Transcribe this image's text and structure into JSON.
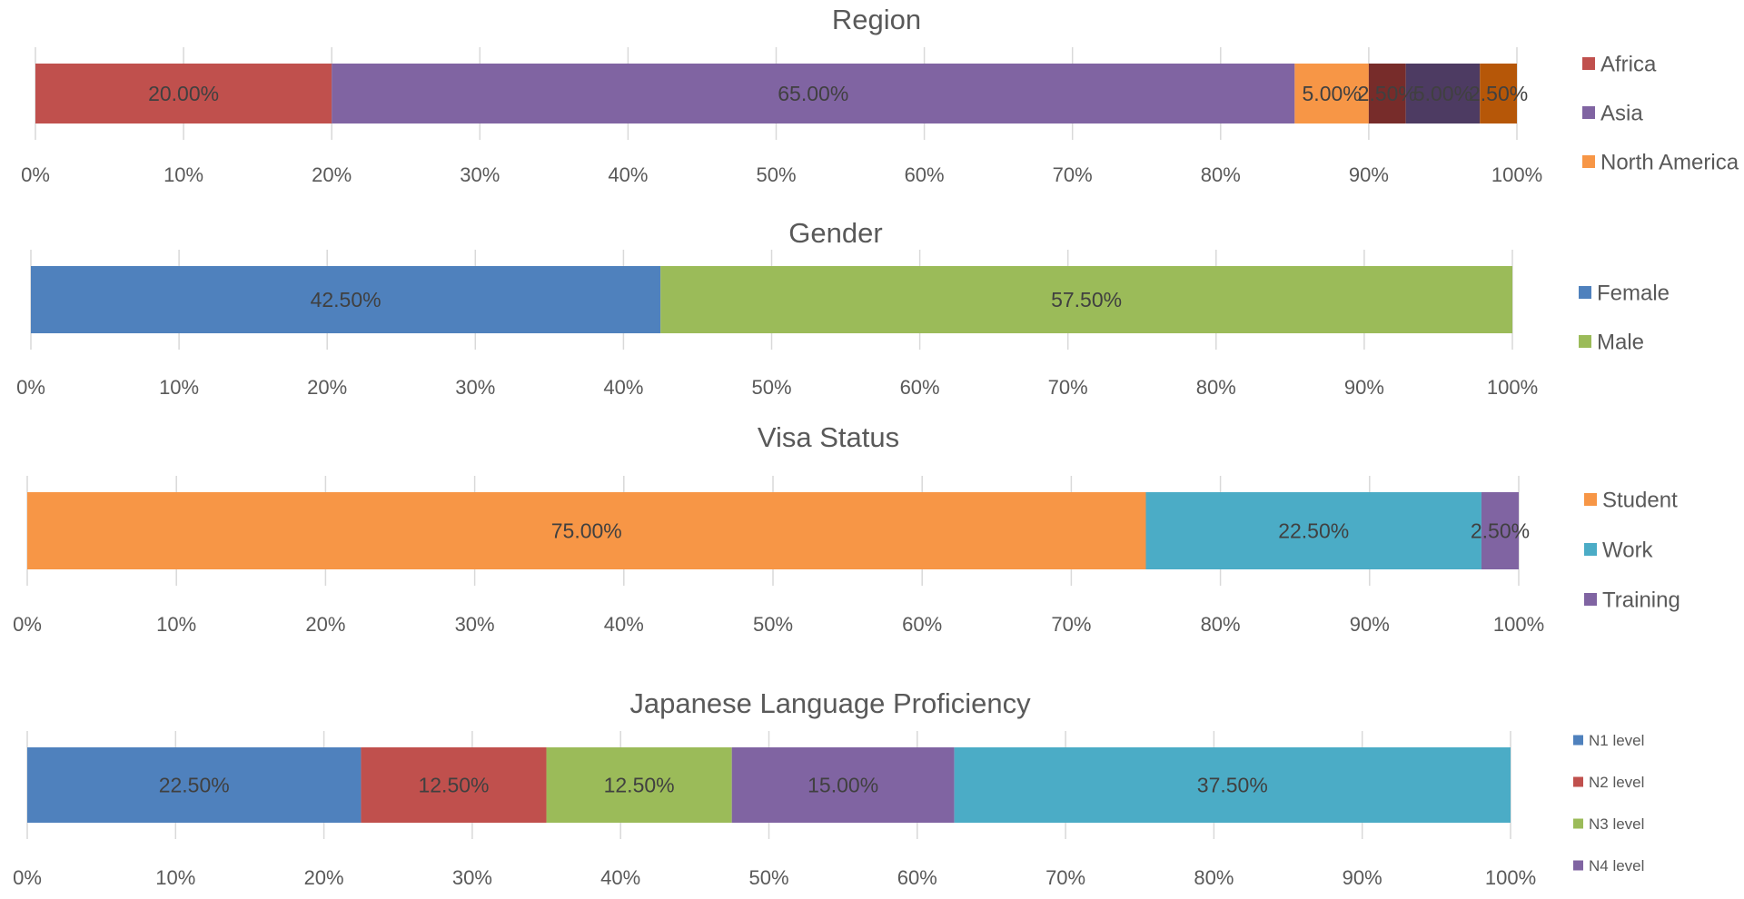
{
  "chart_data": [
    {
      "type": "bar",
      "title": "Region",
      "orientation": "horizontal",
      "stacked": "100%",
      "xlim": [
        0,
        100
      ],
      "tick_labels": [
        "0%",
        "10%",
        "20%",
        "30%",
        "40%",
        "50%",
        "60%",
        "70%",
        "80%",
        "90%",
        "100%"
      ],
      "legend_position": "right",
      "series": [
        {
          "name": "Africa",
          "value": 20.0,
          "label": "20.00%",
          "color": "#C0504D"
        },
        {
          "name": "Asia",
          "value": 65.0,
          "label": "65.00%",
          "color": "#8064A2"
        },
        {
          "name": "North America",
          "value": 5.0,
          "label": "5.00%",
          "color": "#F79646"
        },
        {
          "value": 2.5,
          "label": "2.50%",
          "color": "#772C2A"
        },
        {
          "value": 5.0,
          "label": "5.00%",
          "color": "#4D3B62"
        },
        {
          "value": 2.5,
          "label": "2.50%",
          "color": "#B65708"
        }
      ]
    },
    {
      "type": "bar",
      "title": "Gender",
      "orientation": "horizontal",
      "stacked": "100%",
      "xlim": [
        0,
        100
      ],
      "tick_labels": [
        "0%",
        "10%",
        "20%",
        "30%",
        "40%",
        "50%",
        "60%",
        "70%",
        "80%",
        "90%",
        "100%"
      ],
      "legend_position": "right",
      "series": [
        {
          "name": "Female",
          "value": 42.5,
          "label": "42.50%",
          "color": "#4F81BD"
        },
        {
          "name": "Male",
          "value": 57.5,
          "label": "57.50%",
          "color": "#9BBB59"
        }
      ]
    },
    {
      "type": "bar",
      "title": "Visa Status",
      "orientation": "horizontal",
      "stacked": "100%",
      "xlim": [
        0,
        100
      ],
      "tick_labels": [
        "0%",
        "10%",
        "20%",
        "30%",
        "40%",
        "50%",
        "60%",
        "70%",
        "80%",
        "90%",
        "100%"
      ],
      "legend_position": "right",
      "series": [
        {
          "name": "Student",
          "value": 75.0,
          "label": "75.00%",
          "color": "#F79646"
        },
        {
          "name": "Work",
          "value": 22.5,
          "label": "22.50%",
          "color": "#4BACC6"
        },
        {
          "name": "Training",
          "value": 2.5,
          "label": "2.50%",
          "color": "#8064A2"
        }
      ]
    },
    {
      "type": "bar",
      "title": "Japanese Language Proficiency",
      "orientation": "horizontal",
      "stacked": "100%",
      "xlim": [
        0,
        100
      ],
      "tick_labels": [
        "0%",
        "10%",
        "20%",
        "30%",
        "40%",
        "50%",
        "60%",
        "70%",
        "80%",
        "90%",
        "100%"
      ],
      "legend_position": "right",
      "series": [
        {
          "name": "N1 level",
          "value": 22.5,
          "label": "22.50%",
          "color": "#4F81BD"
        },
        {
          "name": "N2 level",
          "value": 12.5,
          "label": "12.50%",
          "color": "#C0504D"
        },
        {
          "name": "N3 level",
          "value": 12.5,
          "label": "12.50%",
          "color": "#9BBB59"
        },
        {
          "name": "N4 level",
          "value": 15.0,
          "label": "15.00%",
          "color": "#8064A2"
        },
        {
          "value": 37.5,
          "label": "37.50%",
          "color": "#4BACC6"
        }
      ]
    }
  ]
}
